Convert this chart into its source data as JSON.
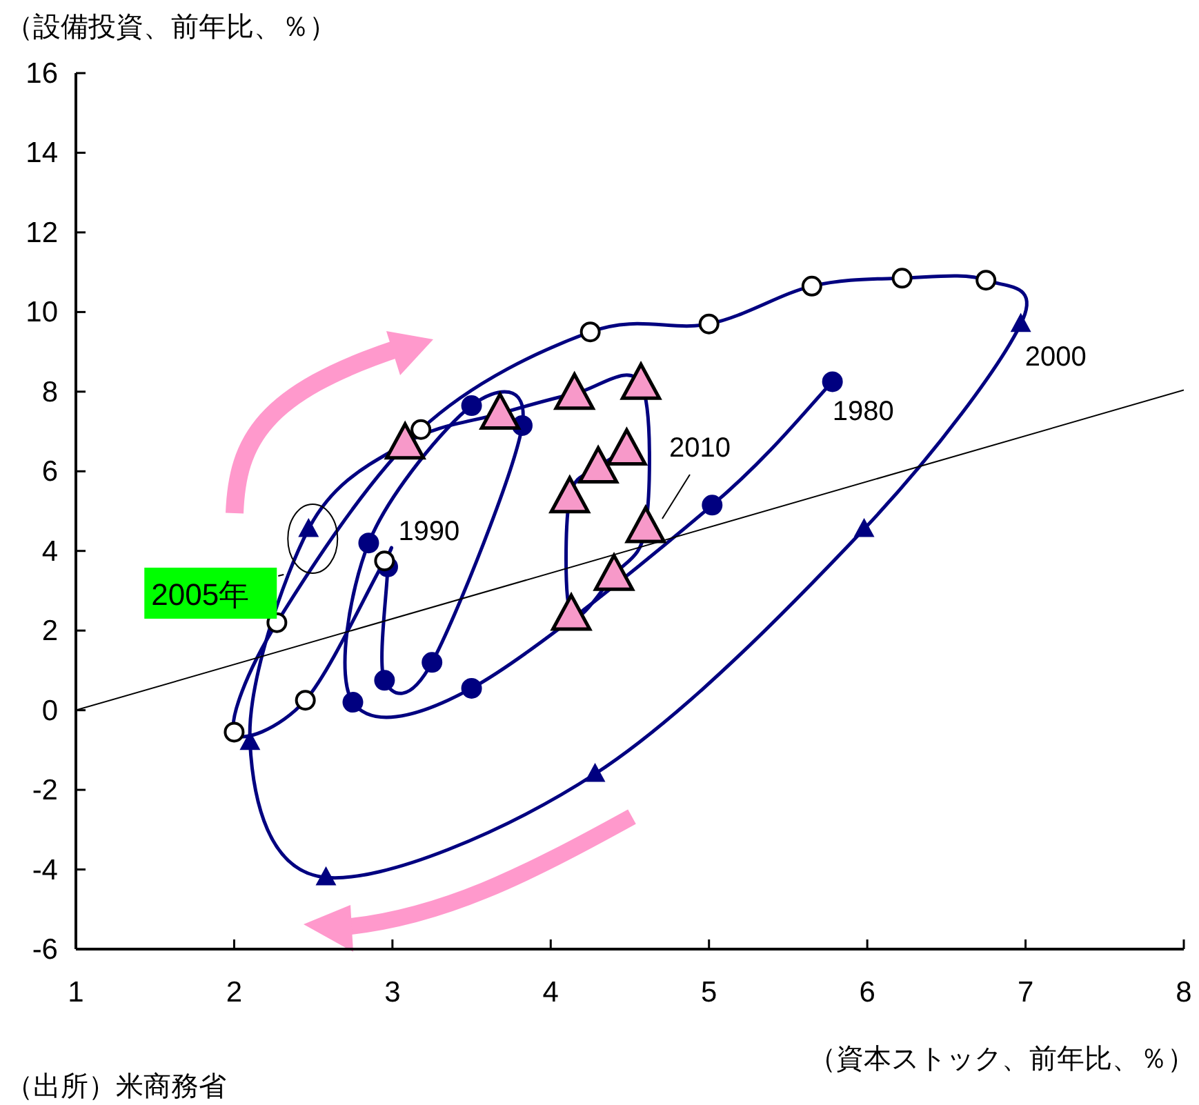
{
  "chart_data": {
    "type": "line",
    "ylabel": "（設備投資、前年比、％）",
    "xlabel": "（資本ストック、前年比、％）",
    "xlim": [
      1,
      8
    ],
    "xticks": [
      1,
      2,
      3,
      4,
      5,
      6,
      7,
      8
    ],
    "ylim": [
      -6,
      16
    ],
    "yticks": [
      -6,
      -4,
      -2,
      0,
      2,
      4,
      6,
      8,
      10,
      12,
      14,
      16
    ],
    "grid": false,
    "line_style": "solid",
    "series": [
      {
        "color": "#000080",
        "marker": "circle",
        "x": [
          5.78,
          5.02,
          3.5,
          2.75,
          2.85,
          3.5,
          3.82,
          3.25,
          2.95,
          2.97
        ],
        "values": [
          8.25,
          5.15,
          0.55,
          0.2,
          4.2,
          7.65,
          7.15,
          1.2,
          0.75,
          3.6
        ]
      },
      {
        "color": "#ffffff",
        "marker": "circle",
        "x": [
          2.95,
          2.45,
          2.0,
          2.27,
          3.18,
          4.25,
          5.0,
          5.65,
          6.22,
          6.75
        ],
        "values": [
          3.75,
          0.25,
          -0.55,
          2.2,
          7.05,
          9.5,
          9.7,
          10.65,
          10.85,
          10.8
        ]
      },
      {
        "color": "#000080",
        "marker": "triangle",
        "x": [
          6.97,
          5.98,
          4.28,
          2.58,
          2.1,
          2.47
        ],
        "values": [
          9.7,
          4.55,
          -1.6,
          -4.2,
          -0.8,
          4.55
        ]
      },
      {
        "color": "#f799c9",
        "marker": "triangle",
        "x": [
          3.08,
          3.68,
          4.15,
          4.57,
          4.6,
          4.4,
          4.13,
          4.12,
          4.3,
          4.48
        ],
        "values": [
          6.7,
          7.45,
          7.95,
          8.2,
          4.6,
          3.4,
          2.4,
          5.35,
          6.1,
          6.55
        ]
      },
      {
        "color": "#000000",
        "marker": "none",
        "x": [
          1,
          8
        ],
        "values": [
          0,
          8.04
        ]
      }
    ],
    "annotations": [
      {
        "text": "1980",
        "x": 5.78,
        "y": 8.25
      },
      {
        "text": "1990",
        "x": 2.95,
        "y": 3.75
      },
      {
        "text": "2000",
        "x": 6.97,
        "y": 9.7
      },
      {
        "text": "2010",
        "x": 4.6,
        "y": 4.6
      },
      {
        "text": "2005年",
        "x": 2.47,
        "y": 4.55
      },
      "（出所）米商務省"
    ]
  }
}
